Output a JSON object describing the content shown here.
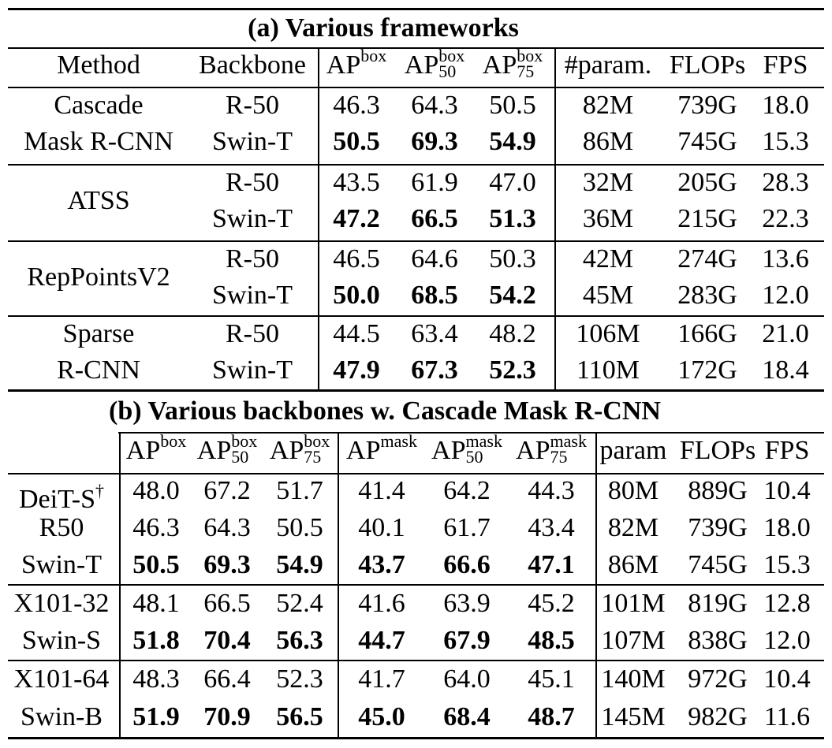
{
  "table_a": {
    "title": "(a) Various frameworks",
    "headers": {
      "method": "Method",
      "backbone": "Backbone",
      "ap_base": "AP",
      "ap_sup": "box",
      "ap50_sub": "50",
      "ap75_sub": "75",
      "params": "#param.",
      "flops": "FLOPs",
      "fps": "FPS"
    },
    "groups": [
      {
        "method_lines": [
          "Cascade",
          "Mask R-CNN"
        ],
        "rows": [
          {
            "backbone": "R-50",
            "ap": "46.3",
            "ap50": "64.3",
            "ap75": "50.5",
            "params": "82M",
            "flops": "739G",
            "fps": "18.0",
            "bold": false
          },
          {
            "backbone": "Swin-T",
            "ap": "50.5",
            "ap50": "69.3",
            "ap75": "54.9",
            "params": "86M",
            "flops": "745G",
            "fps": "15.3",
            "bold": true
          }
        ]
      },
      {
        "method_lines": [
          "ATSS"
        ],
        "rows": [
          {
            "backbone": "R-50",
            "ap": "43.5",
            "ap50": "61.9",
            "ap75": "47.0",
            "params": "32M",
            "flops": "205G",
            "fps": "28.3",
            "bold": false
          },
          {
            "backbone": "Swin-T",
            "ap": "47.2",
            "ap50": "66.5",
            "ap75": "51.3",
            "params": "36M",
            "flops": "215G",
            "fps": "22.3",
            "bold": true
          }
        ]
      },
      {
        "method_lines": [
          "RepPointsV2"
        ],
        "rows": [
          {
            "backbone": "R-50",
            "ap": "46.5",
            "ap50": "64.6",
            "ap75": "50.3",
            "params": "42M",
            "flops": "274G",
            "fps": "13.6",
            "bold": false
          },
          {
            "backbone": "Swin-T",
            "ap": "50.0",
            "ap50": "68.5",
            "ap75": "54.2",
            "params": "45M",
            "flops": "283G",
            "fps": "12.0",
            "bold": true
          }
        ]
      },
      {
        "method_lines": [
          "Sparse",
          "R-CNN"
        ],
        "rows": [
          {
            "backbone": "R-50",
            "ap": "44.5",
            "ap50": "63.4",
            "ap75": "48.2",
            "params": "106M",
            "flops": "166G",
            "fps": "21.0",
            "bold": false
          },
          {
            "backbone": "Swin-T",
            "ap": "47.9",
            "ap50": "67.3",
            "ap75": "52.3",
            "params": "110M",
            "flops": "172G",
            "fps": "18.4",
            "bold": true
          }
        ]
      }
    ]
  },
  "table_b": {
    "title": "(b) Various backbones w. Cascade Mask R-CNN",
    "headers": {
      "ap_base": "AP",
      "box_sup": "box",
      "mask_sup": "mask",
      "sub50": "50",
      "sub75": "75",
      "params": "param",
      "flops": "FLOPs",
      "fps": "FPS"
    },
    "dagger": "†",
    "rows": [
      {
        "backbone": "DeiT-S",
        "dagger": true,
        "apb": "48.0",
        "apb50": "67.2",
        "apb75": "51.7",
        "apm": "41.4",
        "apm50": "64.2",
        "apm75": "44.3",
        "params": "80M",
        "flops": "889G",
        "fps": "10.4",
        "bold": false
      },
      {
        "backbone": "R50",
        "dagger": false,
        "apb": "46.3",
        "apb50": "64.3",
        "apb75": "50.5",
        "apm": "40.1",
        "apm50": "61.7",
        "apm75": "43.4",
        "params": "82M",
        "flops": "739G",
        "fps": "18.0",
        "bold": false
      },
      {
        "backbone": "Swin-T",
        "dagger": false,
        "apb": "50.5",
        "apb50": "69.3",
        "apb75": "54.9",
        "apm": "43.7",
        "apm50": "66.6",
        "apm75": "47.1",
        "params": "86M",
        "flops": "745G",
        "fps": "15.3",
        "bold": true
      },
      {
        "backbone": "X101-32",
        "dagger": false,
        "apb": "48.1",
        "apb50": "66.5",
        "apb75": "52.4",
        "apm": "41.6",
        "apm50": "63.9",
        "apm75": "45.2",
        "params": "101M",
        "flops": "819G",
        "fps": "12.8",
        "bold": false
      },
      {
        "backbone": "Swin-S",
        "dagger": false,
        "apb": "51.8",
        "apb50": "70.4",
        "apb75": "56.3",
        "apm": "44.7",
        "apm50": "67.9",
        "apm75": "48.5",
        "params": "107M",
        "flops": "838G",
        "fps": "12.0",
        "bold": true
      },
      {
        "backbone": "X101-64",
        "dagger": false,
        "apb": "48.3",
        "apb50": "66.4",
        "apb75": "52.3",
        "apm": "41.7",
        "apm50": "64.0",
        "apm75": "45.1",
        "params": "140M",
        "flops": "972G",
        "fps": "10.4",
        "bold": false
      },
      {
        "backbone": "Swin-B",
        "dagger": false,
        "apb": "51.9",
        "apb50": "70.9",
        "apb75": "56.5",
        "apm": "45.0",
        "apm50": "68.4",
        "apm75": "48.7",
        "params": "145M",
        "flops": "982G",
        "fps": "11.6",
        "bold": true
      }
    ]
  }
}
